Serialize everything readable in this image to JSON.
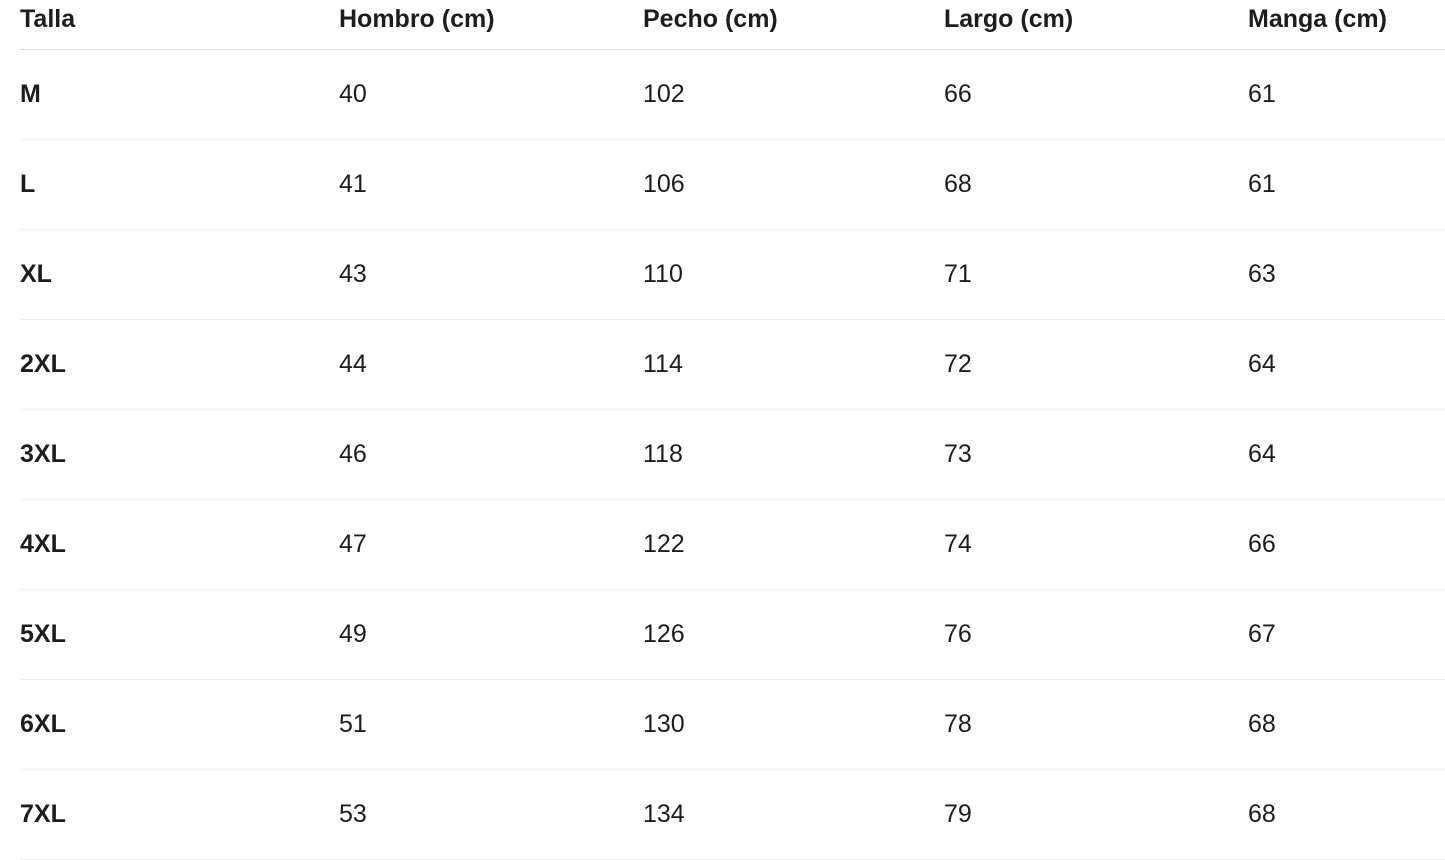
{
  "size_chart": {
    "columns": [
      {
        "key": "talla",
        "label": "Talla"
      },
      {
        "key": "hombro",
        "label": "Hombro (cm)"
      },
      {
        "key": "pecho",
        "label": "Pecho (cm)"
      },
      {
        "key": "largo",
        "label": "Largo (cm)"
      },
      {
        "key": "manga",
        "label": "Manga (cm)"
      }
    ],
    "rows": [
      {
        "talla": "M",
        "hombro": "40",
        "pecho": "102",
        "largo": "66",
        "manga": "61"
      },
      {
        "talla": "L",
        "hombro": "41",
        "pecho": "106",
        "largo": "68",
        "manga": "61"
      },
      {
        "talla": "XL",
        "hombro": "43",
        "pecho": "110",
        "largo": "71",
        "manga": "63"
      },
      {
        "talla": "2XL",
        "hombro": "44",
        "pecho": "114",
        "largo": "72",
        "manga": "64"
      },
      {
        "talla": "3XL",
        "hombro": "46",
        "pecho": "118",
        "largo": "73",
        "manga": "64"
      },
      {
        "talla": "4XL",
        "hombro": "47",
        "pecho": "122",
        "largo": "74",
        "manga": "66"
      },
      {
        "talla": "5XL",
        "hombro": "49",
        "pecho": "126",
        "largo": "76",
        "manga": "67"
      },
      {
        "talla": "6XL",
        "hombro": "51",
        "pecho": "130",
        "largo": "78",
        "manga": "68"
      },
      {
        "talla": "7XL",
        "hombro": "53",
        "pecho": "134",
        "largo": "79",
        "manga": "68"
      }
    ],
    "colors": {
      "text": "#1d1d1f",
      "header_divider": "#d8d8d8",
      "row_divider": "#f0f0f0",
      "background": "#ffffff"
    }
  }
}
